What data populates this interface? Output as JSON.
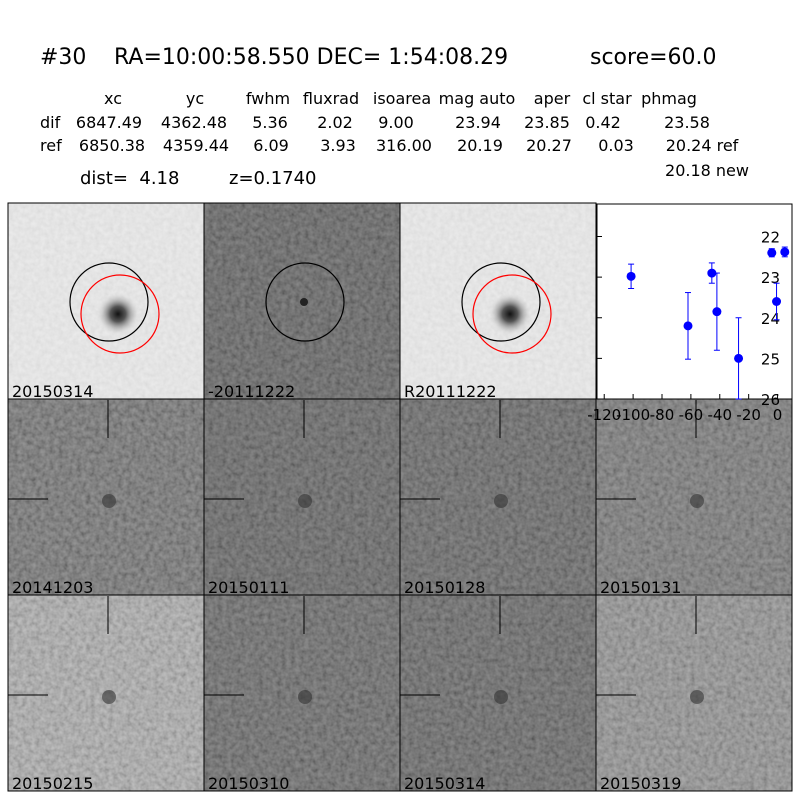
{
  "header": {
    "id": "#30",
    "coords": "RA=10:00:58.550 DEC= 1:54:08.29",
    "score": "score=60.0"
  },
  "table": {
    "columns": [
      "xc",
      "yc",
      "fwhm",
      "fluxrad",
      "isoarea",
      "mag auto",
      "aper",
      "cl star",
      "phmag"
    ],
    "rows": [
      {
        "label": "dif",
        "cells": [
          "6847.49",
          "4362.48",
          "5.36",
          "2.02",
          "9.00",
          "23.94",
          "23.85",
          "0.42",
          "23.58"
        ]
      },
      {
        "label": "ref",
        "cells": [
          "6850.38",
          "4359.44",
          "6.09",
          "3.93",
          "316.00",
          "20.19",
          "20.27",
          "0.03",
          "20.24 ref"
        ]
      }
    ],
    "extra": "20.18 new"
  },
  "dist": "dist=  4.18",
  "z": "z=0.1740",
  "stamps": [
    {
      "label": "20150314"
    },
    {
      "label": "-20111222"
    },
    {
      "label": "R20111222"
    },
    {
      "label": "20141203"
    },
    {
      "label": "20150111"
    },
    {
      "label": "20150128"
    },
    {
      "label": "20150131"
    },
    {
      "label": "20150215"
    },
    {
      "label": "20150310"
    },
    {
      "label": "20150314",
      "color": "#ff0000"
    },
    {
      "label": "20150319"
    }
  ],
  "chart_data": {
    "type": "scatter",
    "series": [
      {
        "color": "#0000ff",
        "x": [
          -101.4,
          -62,
          -45.5,
          -42,
          -27,
          -4,
          -0.7,
          5
        ],
        "values": [
          22.98,
          24.2,
          22.9,
          23.85,
          25.0,
          22.4,
          23.6,
          22.38
        ],
        "errors": [
          0.3,
          0.82,
          0.25,
          0.95,
          1.0,
          0.1,
          0.45,
          0.12
        ]
      }
    ],
    "xlim": [
      -125,
      10
    ],
    "ylim": [
      26,
      21.2
    ],
    "xticks": [
      -120,
      -100,
      -80,
      -60,
      -40,
      -20,
      0
    ],
    "yticks": [
      22,
      23,
      24,
      25,
      26
    ]
  }
}
